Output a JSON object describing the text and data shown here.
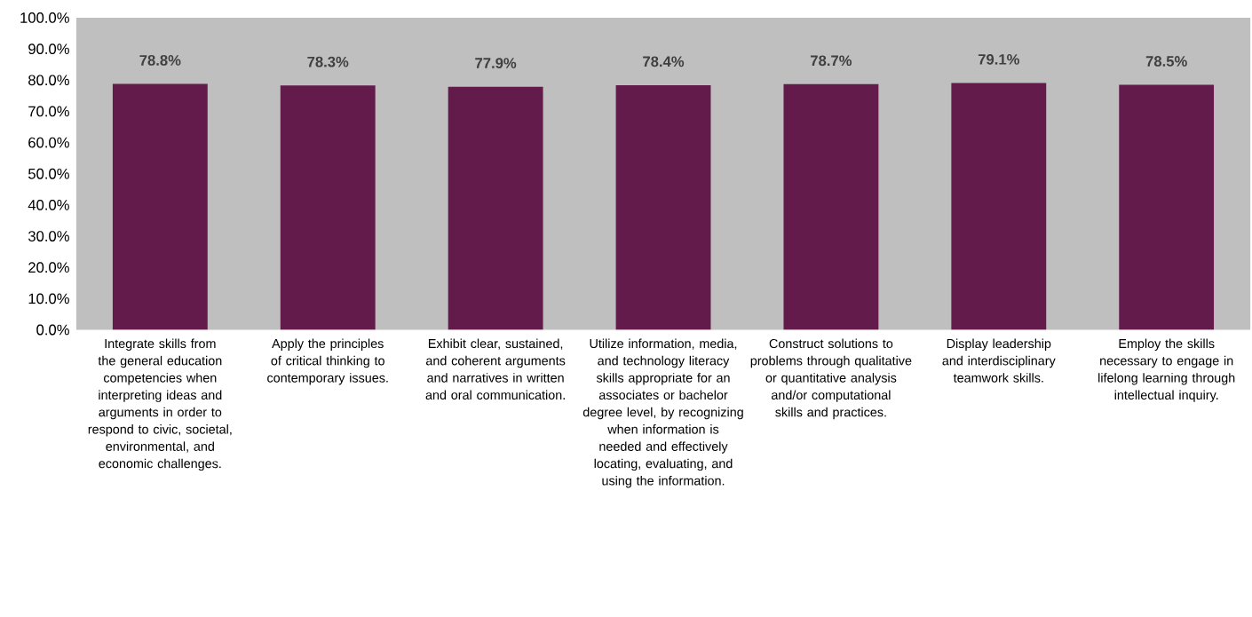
{
  "chart_data": {
    "type": "bar",
    "categories": [
      "Integrate skills from the general education competencies when interpreting ideas and arguments in order to respond to civic, societal, environmental, and economic challenges.",
      "Apply the principles of critical thinking to contemporary issues.",
      "Exhibit clear, sustained, and coherent arguments and narratives in written and oral communication.",
      "Utilize information, media, and technology literacy skills appropriate for an associates or bachelor degree level, by recognizing when information is needed and effectively locating, evaluating, and using the information.",
      "Construct solutions to problems through qualitative or quantitative analysis and/or computational skills and practices.",
      "Display leadership and interdisciplinary teamwork skills.",
      "Employ the skills necessary to engage in lifelong learning through intellectual inquiry."
    ],
    "values": [
      78.8,
      78.3,
      77.9,
      78.4,
      78.7,
      79.1,
      78.5
    ],
    "value_labels": [
      "78.8%",
      "78.3%",
      "77.9%",
      "78.4%",
      "78.7%",
      "79.1%",
      "78.5%"
    ],
    "color": "#621b4b",
    "ylim": [
      0,
      100
    ],
    "yticks": [
      {
        "value": 0,
        "label": "0.0%"
      },
      {
        "value": 10,
        "label": "10.0%"
      },
      {
        "value": 20,
        "label": "20.0%"
      },
      {
        "value": 30,
        "label": "30.0%"
      },
      {
        "value": 40,
        "label": "40.0%"
      },
      {
        "value": 50,
        "label": "50.0%"
      },
      {
        "value": 60,
        "label": "60.0%"
      },
      {
        "value": 70,
        "label": "70.0%"
      },
      {
        "value": 80,
        "label": "80.0%"
      },
      {
        "value": 90,
        "label": "90.0%"
      },
      {
        "value": 100,
        "label": "100.0%"
      }
    ]
  }
}
